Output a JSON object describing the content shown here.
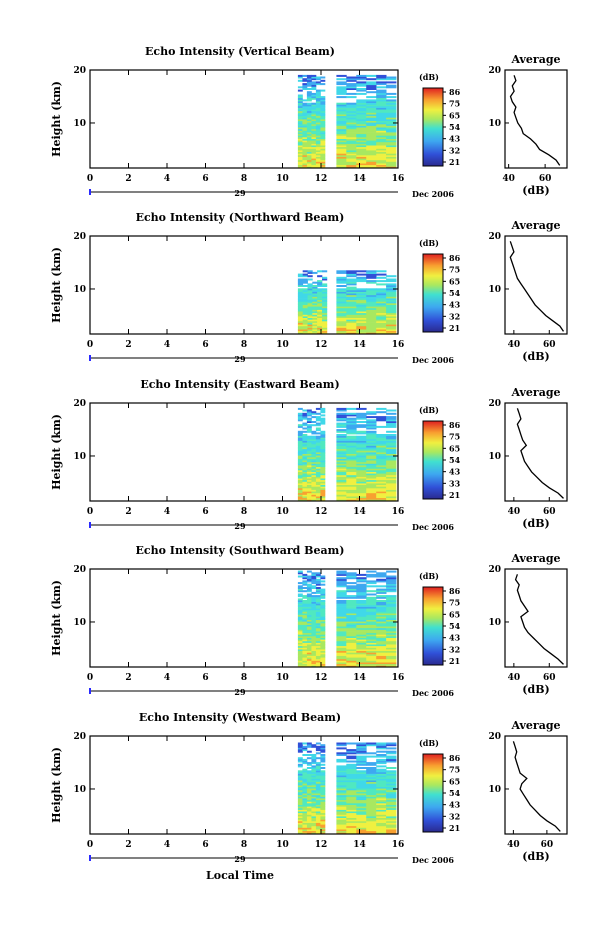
{
  "chart_data": [
    {
      "type": "heatmap",
      "title": "Echo Intensity (Vertical Beam)",
      "ylabel": "Height (km)",
      "x_ticks": [
        "0",
        "2",
        "4",
        "6",
        "8",
        "10",
        "12",
        "14",
        "16"
      ],
      "y_ticks": [
        "20",
        "10"
      ],
      "xlim": [
        0,
        16
      ],
      "ylim": [
        1.5,
        20
      ],
      "date_label": "29",
      "date_suffix": "Dec 2006",
      "colorbar_unit": "(dB)",
      "colorbar_ticks": [
        "86",
        "75",
        "65",
        "54",
        "43",
        "32",
        "21"
      ],
      "data_start_hour": 10.8,
      "gap_hours": [
        12.2,
        12.8
      ],
      "data_end_hour": 15.9,
      "top_height_km": 19.0,
      "average_title": "Average",
      "average_xlabel": "(dB)",
      "average_xticks": [
        "40",
        "60"
      ],
      "average_xlim": [
        38,
        72
      ],
      "average_yticks": [
        "20",
        "10"
      ],
      "average_profile": {
        "heights": [
          2,
          3,
          4,
          5,
          6,
          7,
          8,
          9,
          10,
          11,
          12,
          13,
          14,
          15,
          16,
          17,
          18,
          19
        ],
        "values": [
          68,
          66,
          62,
          57,
          55,
          52,
          48,
          47,
          45,
          44,
          43,
          44,
          42,
          41,
          43,
          42,
          44,
          43
        ]
      }
    },
    {
      "type": "heatmap",
      "title": "Echo Intensity (Northward Beam)",
      "ylabel": "Height (km)",
      "x_ticks": [
        "0",
        "2",
        "4",
        "6",
        "8",
        "10",
        "12",
        "14",
        "16"
      ],
      "y_ticks": [
        "20",
        "10"
      ],
      "xlim": [
        0,
        16
      ],
      "ylim": [
        1.5,
        20
      ],
      "date_label": "29",
      "date_suffix": "Dec 2006",
      "colorbar_unit": "(dB)",
      "colorbar_ticks": [
        "86",
        "75",
        "65",
        "54",
        "43",
        "32",
        "21"
      ],
      "data_start_hour": 10.8,
      "gap_hours": [
        12.3,
        12.8
      ],
      "data_end_hour": 15.9,
      "top_height_km": 13.5,
      "average_title": "Average",
      "average_xlabel": "(dB)",
      "average_xticks": [
        "40",
        "60"
      ],
      "average_xlim": [
        35,
        70
      ],
      "average_yticks": [
        "20",
        "10"
      ],
      "average_profile": {
        "heights": [
          2,
          3,
          4,
          5,
          6,
          7,
          8,
          9,
          10,
          11,
          12,
          13,
          14,
          15,
          16,
          17,
          18,
          19
        ],
        "values": [
          68,
          66,
          62,
          58,
          55,
          52,
          50,
          48,
          46,
          44,
          42,
          41,
          40,
          39,
          38,
          40,
          39,
          38
        ]
      }
    },
    {
      "type": "heatmap",
      "title": "Echo Intensity (Eastward Beam)",
      "ylabel": "Height (km)",
      "x_ticks": [
        "0",
        "2",
        "4",
        "6",
        "8",
        "10",
        "12",
        "14",
        "16"
      ],
      "y_ticks": [
        "20",
        "10"
      ],
      "xlim": [
        0,
        16
      ],
      "ylim": [
        1.5,
        20
      ],
      "date_label": "29",
      "date_suffix": "Dec 2006",
      "colorbar_unit": "(dB)",
      "colorbar_ticks": [
        "86",
        "75",
        "65",
        "54",
        "43",
        "33",
        "21"
      ],
      "data_start_hour": 10.8,
      "gap_hours": [
        12.2,
        12.8
      ],
      "data_end_hour": 15.9,
      "top_height_km": 19.0,
      "average_title": "Average",
      "average_xlabel": "(dB)",
      "average_xticks": [
        "40",
        "60"
      ],
      "average_xlim": [
        35,
        70
      ],
      "average_yticks": [
        "20",
        "10"
      ],
      "average_profile": {
        "heights": [
          2,
          3,
          4,
          5,
          6,
          7,
          8,
          9,
          10,
          11,
          12,
          13,
          14,
          15,
          16,
          17,
          18,
          19
        ],
        "values": [
          68,
          65,
          60,
          56,
          53,
          50,
          48,
          46,
          45,
          44,
          47,
          45,
          44,
          43,
          42,
          44,
          43,
          42
        ]
      }
    },
    {
      "type": "heatmap",
      "title": "Echo Intensity (Southward Beam)",
      "ylabel": "Height (km)",
      "x_ticks": [
        "0",
        "2",
        "4",
        "6",
        "8",
        "10",
        "12",
        "14",
        "16"
      ],
      "y_ticks": [
        "20",
        "10"
      ],
      "xlim": [
        0,
        16
      ],
      "ylim": [
        1.5,
        20
      ],
      "date_label": "29",
      "date_suffix": "Dec 2006",
      "colorbar_unit": "(dB)",
      "colorbar_ticks": [
        "86",
        "75",
        "65",
        "54",
        "43",
        "32",
        "21"
      ],
      "data_start_hour": 10.8,
      "gap_hours": [
        12.2,
        12.8
      ],
      "data_end_hour": 15.9,
      "top_height_km": 19.5,
      "average_title": "Average",
      "average_xlabel": "(dB)",
      "average_xticks": [
        "40",
        "60"
      ],
      "average_xlim": [
        35,
        70
      ],
      "average_yticks": [
        "20",
        "10"
      ],
      "average_profile": {
        "heights": [
          2,
          3,
          4,
          5,
          6,
          7,
          8,
          9,
          10,
          11,
          12,
          13,
          14,
          15,
          16,
          17,
          18,
          19
        ],
        "values": [
          68,
          65,
          61,
          57,
          54,
          51,
          48,
          46,
          45,
          44,
          48,
          46,
          44,
          43,
          42,
          43,
          41,
          42
        ]
      }
    },
    {
      "type": "heatmap",
      "title": "Echo Intensity (Westward Beam)",
      "ylabel": "Height (km)",
      "x_ticks": [
        "0",
        "2",
        "4",
        "6",
        "8",
        "10",
        "12",
        "14",
        "16"
      ],
      "y_ticks": [
        "20",
        "10"
      ],
      "xlim": [
        0,
        16
      ],
      "ylim": [
        1.5,
        20
      ],
      "date_label": "29",
      "date_suffix": "Dec 2006",
      "xlabel": "Local Time",
      "colorbar_unit": "(dB)",
      "colorbar_ticks": [
        "86",
        "75",
        "65",
        "54",
        "43",
        "32",
        "21"
      ],
      "data_start_hour": 10.8,
      "gap_hours": [
        12.2,
        12.8
      ],
      "data_end_hour": 15.9,
      "top_height_km": 18.5,
      "average_title": "Average",
      "average_xlabel": "(dB)",
      "average_xticks": [
        "40",
        "60"
      ],
      "average_xlim": [
        35,
        72
      ],
      "average_yticks": [
        "20",
        "10"
      ],
      "average_profile": {
        "heights": [
          2,
          3,
          4,
          5,
          6,
          7,
          8,
          9,
          10,
          11,
          12,
          13,
          14,
          15,
          16,
          17,
          18,
          19
        ],
        "values": [
          68,
          65,
          60,
          56,
          53,
          50,
          48,
          46,
          44,
          45,
          48,
          44,
          43,
          42,
          41,
          42,
          41,
          40
        ]
      }
    }
  ]
}
